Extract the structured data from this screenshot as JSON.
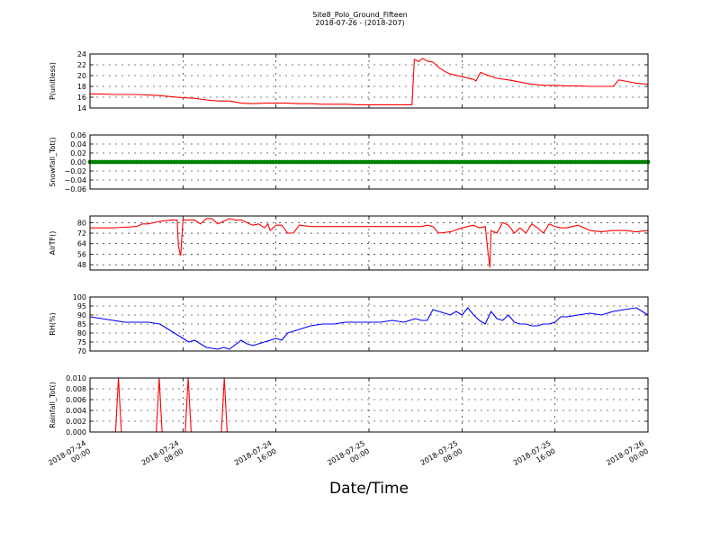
{
  "header": {
    "title": "Site8_Polo_Ground_Fifteen",
    "subtitle": "2018-07-26 - (2018-207)"
  },
  "xaxis": {
    "label": "Date/Time",
    "ticks": [
      [
        "2018-07-24",
        "00:00"
      ],
      [
        "2018-07-24",
        "08:00"
      ],
      [
        "2018-07-24",
        "16:00"
      ],
      [
        "2018-07-25",
        "00:00"
      ],
      [
        "2018-07-25",
        "08:00"
      ],
      [
        "2018-07-25",
        "16:00"
      ],
      [
        "2018-07-26",
        "00:00"
      ]
    ],
    "range_hours": [
      0,
      48
    ]
  },
  "chart_data": [
    {
      "type": "line",
      "ylabel": "P(unitless)",
      "ylim": [
        14,
        24
      ],
      "yticks": [
        "14",
        "16",
        "18",
        "20",
        "22",
        "24"
      ],
      "color": "#ff0000",
      "grid": true,
      "x": [
        0,
        1,
        2,
        3,
        4,
        5,
        6,
        7,
        8,
        9,
        10,
        11,
        12,
        13,
        14,
        15,
        16,
        17,
        18,
        19,
        20,
        21,
        22,
        23,
        24,
        25,
        26,
        27,
        27.7,
        27.9,
        28.3,
        28.6,
        29,
        29.5,
        30,
        30.5,
        31,
        32,
        33,
        33.2,
        33.6,
        34,
        35,
        36,
        37,
        38,
        39,
        40,
        41,
        42,
        43,
        44,
        45,
        45.5,
        46,
        47,
        48
      ],
      "values": [
        16.6,
        16.6,
        16.5,
        16.5,
        16.5,
        16.4,
        16.3,
        16.1,
        15.9,
        15.8,
        15.5,
        15.3,
        15.3,
        14.9,
        14.8,
        14.9,
        14.9,
        14.9,
        14.8,
        14.8,
        14.7,
        14.7,
        14.7,
        14.6,
        14.6,
        14.6,
        14.6,
        14.6,
        14.6,
        23,
        22.6,
        23.2,
        22.7,
        22.5,
        21.5,
        20.8,
        20.3,
        19.8,
        19.3,
        19,
        20.6,
        20.2,
        19.5,
        19.2,
        18.8,
        18.4,
        18.2,
        18.2,
        18.1,
        18.1,
        18,
        18,
        18,
        19.2,
        19,
        18.6,
        18.4
      ]
    },
    {
      "type": "scatter",
      "ylabel": "Snowfall_Tot()",
      "ylim": [
        -0.06,
        0.06
      ],
      "yticks": [
        "−0.06",
        "−0.04",
        "−0.02",
        "0.00",
        "0.02",
        "0.04",
        "0.06"
      ],
      "color": "#008000",
      "grid": true,
      "constant_value": 0,
      "x_step_hours": 0.25
    },
    {
      "type": "line",
      "ylabel": "AirTF()",
      "ylim": [
        44,
        85
      ],
      "yticks": [
        "48",
        "56",
        "64",
        "72",
        "80"
      ],
      "color": "#ff0000",
      "grid": true,
      "x": [
        0,
        2,
        4,
        4.5,
        5,
        6,
        7,
        7.5,
        7.6,
        7.8,
        8,
        9,
        9.5,
        10,
        10.5,
        11,
        12,
        12.5,
        13,
        14,
        14.5,
        15,
        15.3,
        15.5,
        16,
        16.5,
        17,
        17.5,
        18,
        19,
        20,
        22,
        24,
        25,
        26,
        27,
        28,
        28.5,
        29,
        29.5,
        30,
        31,
        32,
        33,
        33.5,
        34,
        34.2,
        34.4,
        34.5,
        35,
        35.5,
        36,
        36.5,
        37,
        37.5,
        38,
        38.5,
        39,
        39.5,
        40,
        40.5,
        41,
        42,
        43,
        44,
        45,
        46,
        47,
        48
      ],
      "values": [
        76,
        76,
        77,
        79,
        79,
        81,
        82,
        82,
        62,
        55,
        82,
        82,
        79,
        83,
        83,
        79,
        83,
        82,
        82,
        78,
        79,
        76,
        79,
        74,
        78,
        78,
        72,
        72,
        78,
        77,
        77,
        77,
        77,
        77,
        77,
        77,
        77,
        77,
        78,
        77,
        72,
        73,
        76,
        78,
        76,
        77,
        60,
        46,
        74,
        72,
        80,
        78,
        72,
        76,
        72,
        79,
        76,
        72,
        79,
        77,
        76,
        76,
        78,
        74,
        73,
        74,
        74,
        73,
        74
      ]
    },
    {
      "type": "line",
      "ylabel": "RH(%)",
      "ylim": [
        70,
        100
      ],
      "yticks": [
        "70",
        "75",
        "80",
        "85",
        "90",
        "95",
        "100"
      ],
      "color": "#0000ff",
      "grid": true,
      "x": [
        0,
        1,
        2,
        3,
        4,
        5,
        6,
        7,
        7.5,
        8,
        8.5,
        9,
        10,
        11,
        11.5,
        12,
        13,
        13.5,
        14,
        15,
        16,
        16.5,
        17,
        18,
        19,
        20,
        21,
        22,
        23,
        24,
        25,
        26,
        27,
        28,
        28.5,
        29,
        29.5,
        30,
        30.5,
        31,
        31.5,
        32,
        32.5,
        33,
        33.5,
        34,
        34.5,
        35,
        35.5,
        36,
        36.5,
        37,
        37.5,
        38,
        38.5,
        39,
        39.5,
        40,
        40.5,
        41,
        42,
        43,
        44,
        45,
        46,
        47,
        48
      ],
      "values": [
        89,
        88,
        87,
        86,
        86,
        86,
        85,
        81,
        79,
        77,
        75,
        76,
        72,
        71,
        72,
        71,
        76,
        74,
        73,
        75,
        77,
        76,
        80,
        82,
        84,
        85,
        85,
        86,
        86,
        86,
        86,
        87,
        86,
        88,
        87,
        87,
        93,
        92,
        91,
        90,
        92,
        90,
        94,
        90,
        87,
        85,
        92,
        88,
        87,
        90,
        86,
        85,
        85,
        84,
        84,
        85,
        85,
        86,
        89,
        89,
        90,
        91,
        90,
        92,
        93,
        94,
        90
      ]
    },
    {
      "type": "line",
      "ylabel": "Rainfall_Tot()",
      "ylim": [
        0,
        0.01
      ],
      "yticks": [
        "0.000",
        "0.002",
        "0.004",
        "0.006",
        "0.008",
        "0.010"
      ],
      "color": "#ff0000",
      "grid": true,
      "x": [
        0,
        2.2,
        2.45,
        2.7,
        5.7,
        5.95,
        6.2,
        8.2,
        8.45,
        8.7,
        11.3,
        11.55,
        11.8,
        48
      ],
      "values": [
        0,
        0,
        0.01,
        0,
        0,
        0.01,
        0,
        0,
        0.01,
        0,
        0,
        0.01,
        0,
        0
      ]
    }
  ]
}
